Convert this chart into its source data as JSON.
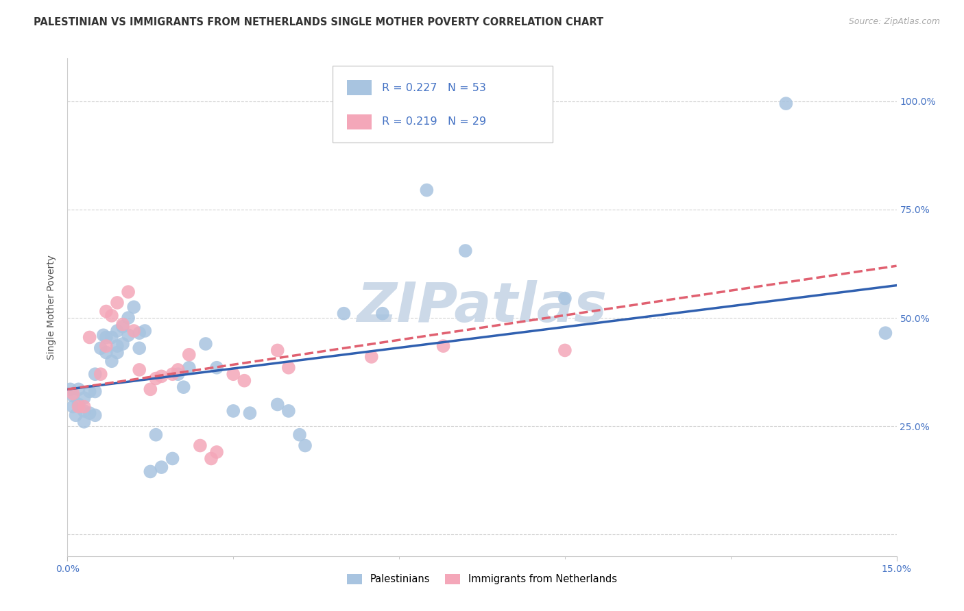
{
  "title": "PALESTINIAN VS IMMIGRANTS FROM NETHERLANDS SINGLE MOTHER POVERTY CORRELATION CHART",
  "source": "Source: ZipAtlas.com",
  "ylabel": "Single Mother Poverty",
  "xlim": [
    0.0,
    0.15
  ],
  "ylim": [
    -0.05,
    1.1
  ],
  "ytick_positions": [
    0.0,
    0.25,
    0.5,
    0.75,
    1.0
  ],
  "pal_color": "#a8c4e0",
  "neth_color": "#f4a7b9",
  "pal_line_color": "#3060b0",
  "neth_line_color": "#e06070",
  "pal_R": 0.227,
  "pal_N": 53,
  "neth_R": 0.219,
  "neth_N": 29,
  "pal_intercept": 0.335,
  "pal_slope": 1.6,
  "neth_intercept": 0.335,
  "neth_slope": 1.9,
  "palestinians_x": [
    0.0005,
    0.001,
    0.001,
    0.0015,
    0.002,
    0.002,
    0.003,
    0.003,
    0.003,
    0.004,
    0.004,
    0.005,
    0.005,
    0.005,
    0.006,
    0.0065,
    0.007,
    0.007,
    0.008,
    0.008,
    0.009,
    0.009,
    0.009,
    0.01,
    0.01,
    0.011,
    0.011,
    0.012,
    0.013,
    0.013,
    0.014,
    0.015,
    0.016,
    0.017,
    0.019,
    0.02,
    0.021,
    0.022,
    0.025,
    0.027,
    0.03,
    0.033,
    0.038,
    0.04,
    0.042,
    0.043,
    0.05,
    0.057,
    0.065,
    0.072,
    0.09,
    0.13,
    0.148
  ],
  "palestinians_y": [
    0.335,
    0.32,
    0.295,
    0.275,
    0.335,
    0.3,
    0.315,
    0.285,
    0.26,
    0.33,
    0.28,
    0.37,
    0.33,
    0.275,
    0.43,
    0.46,
    0.455,
    0.42,
    0.455,
    0.4,
    0.47,
    0.435,
    0.42,
    0.48,
    0.44,
    0.5,
    0.46,
    0.525,
    0.465,
    0.43,
    0.47,
    0.145,
    0.23,
    0.155,
    0.175,
    0.37,
    0.34,
    0.385,
    0.44,
    0.385,
    0.285,
    0.28,
    0.3,
    0.285,
    0.23,
    0.205,
    0.51,
    0.51,
    0.795,
    0.655,
    0.545,
    0.995,
    0.465
  ],
  "netherlands_x": [
    0.001,
    0.002,
    0.003,
    0.004,
    0.006,
    0.007,
    0.007,
    0.008,
    0.009,
    0.01,
    0.011,
    0.012,
    0.013,
    0.015,
    0.016,
    0.017,
    0.019,
    0.02,
    0.022,
    0.024,
    0.026,
    0.027,
    0.03,
    0.032,
    0.038,
    0.04,
    0.055,
    0.068,
    0.09
  ],
  "netherlands_y": [
    0.325,
    0.295,
    0.295,
    0.455,
    0.37,
    0.435,
    0.515,
    0.505,
    0.535,
    0.485,
    0.56,
    0.47,
    0.38,
    0.335,
    0.36,
    0.365,
    0.37,
    0.38,
    0.415,
    0.205,
    0.175,
    0.19,
    0.37,
    0.355,
    0.425,
    0.385,
    0.41,
    0.435,
    0.425
  ],
  "watermark": "ZIPatlas",
  "watermark_color": "#ccd9e8",
  "bg_color": "#ffffff",
  "grid_color": "#cccccc",
  "tick_color": "#4472c4",
  "title_color": "#333333",
  "source_color": "#aaaaaa"
}
